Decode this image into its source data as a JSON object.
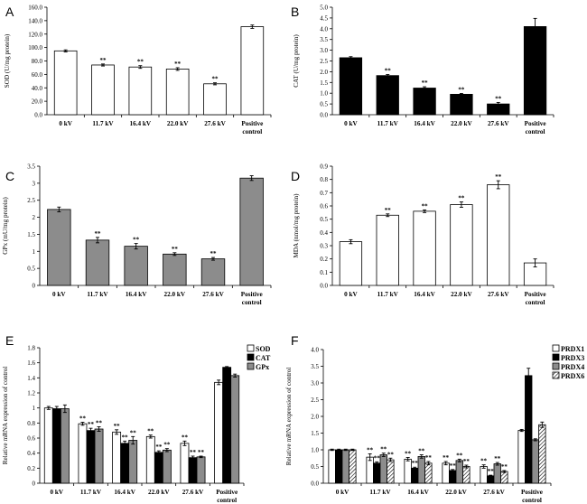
{
  "chart_data": [
    {
      "panel_label": "A",
      "type": "bar",
      "ylabel": "SOD (U/mg protein)",
      "ylim": [
        0,
        160
      ],
      "ytick_step": 20,
      "ytick_labels": [
        "0.0",
        "20.0",
        "40.0",
        "60.0",
        "80.0",
        "100.0",
        "120.0",
        "140.0",
        "160.0"
      ],
      "categories": [
        "0 kV",
        "11.7 kV",
        "16.4 kV",
        "22.0 kV",
        "27.6 kV",
        "Positive control"
      ],
      "series": [
        {
          "name": "SOD",
          "values": [
            95,
            74,
            71,
            68,
            46,
            131
          ],
          "errors": [
            1.5,
            1.5,
            2,
            2,
            1.5,
            2.5
          ],
          "sig": [
            "",
            "**",
            "**",
            "**",
            "**",
            ""
          ]
        }
      ]
    },
    {
      "panel_label": "B",
      "type": "bar",
      "ylabel": "CAT (U/mg protein)",
      "ylim": [
        0,
        5
      ],
      "ytick_step": 0.5,
      "ytick_labels": [
        "0.0",
        "0.5",
        "1.0",
        "1.5",
        "2.0",
        "2.5",
        "3.0",
        "3.5",
        "4.0",
        "4.5",
        "5.0"
      ],
      "categories": [
        "0 kV",
        "11.7 kV",
        "16.4 kV",
        "22.0 kV",
        "27.6 kV",
        "Positive control"
      ],
      "series": [
        {
          "name": "CAT",
          "values": [
            2.65,
            1.82,
            1.24,
            0.95,
            0.5,
            4.1
          ],
          "errors": [
            0.05,
            0.05,
            0.06,
            0.04,
            0.07,
            0.38
          ],
          "sig": [
            "",
            "**",
            "**",
            "**",
            "**",
            ""
          ]
        }
      ]
    },
    {
      "panel_label": "C",
      "type": "bar",
      "ylabel": "GPx (mU/mg protein)",
      "ylim": [
        0,
        3.5
      ],
      "ytick_step": 0.5,
      "ytick_labels": [
        "0",
        "0.5",
        "1",
        "1.5",
        "2",
        "2.5",
        "3",
        "3.5"
      ],
      "categories": [
        "0 kV",
        "11.7 kV",
        "16.4 kV",
        "22.0 kV",
        "27.6 kV",
        "Positive control"
      ],
      "series": [
        {
          "name": "GPx",
          "values": [
            2.23,
            1.33,
            1.15,
            0.92,
            0.78,
            3.15
          ],
          "errors": [
            0.07,
            0.08,
            0.08,
            0.04,
            0.04,
            0.07
          ],
          "sig": [
            "",
            "**",
            "**",
            "**",
            "**",
            ""
          ]
        }
      ]
    },
    {
      "panel_label": "D",
      "type": "bar",
      "ylabel": "MDA (nmol/mg protein)",
      "ylim": [
        0,
        0.9
      ],
      "ytick_step": 0.1,
      "ytick_labels": [
        "0.0",
        "0.1",
        "0.2",
        "0.3",
        "0.4",
        "0.5",
        "0.6",
        "0.7",
        "0.8",
        "0.9"
      ],
      "categories": [
        "0 kV",
        "11.7 kV",
        "16.4 kV",
        "22.0 kV",
        "27.6 kV",
        "Positive control"
      ],
      "series": [
        {
          "name": "MDA",
          "values": [
            0.33,
            0.53,
            0.56,
            0.61,
            0.76,
            0.17
          ],
          "errors": [
            0.015,
            0.01,
            0.01,
            0.02,
            0.03,
            0.03
          ],
          "sig": [
            "",
            "**",
            "**",
            "**",
            "**",
            ""
          ]
        }
      ]
    },
    {
      "panel_label": "E",
      "type": "bar",
      "ylabel": "Relative mRNA expression of control",
      "ylim": [
        0,
        1.8
      ],
      "ytick_step": 0.2,
      "ytick_labels": [
        "0",
        "0.2",
        "0.4",
        "0.6",
        "0.8",
        "1",
        "1.2",
        "1.4",
        "1.6",
        "1.8"
      ],
      "categories": [
        "0 kV",
        "11.7 kV",
        "16.4 kV",
        "22.0 kV",
        "27.6 kV",
        "Positive control"
      ],
      "series": [
        {
          "name": "SOD",
          "values": [
            1.0,
            0.79,
            0.68,
            0.62,
            0.53,
            1.34
          ],
          "errors": [
            0.02,
            0.02,
            0.03,
            0.02,
            0.03,
            0.03
          ],
          "sig": [
            "",
            "**",
            "**",
            "**",
            "**",
            ""
          ]
        },
        {
          "name": "CAT",
          "values": [
            0.99,
            0.7,
            0.53,
            0.41,
            0.34,
            1.54
          ],
          "errors": [
            0.03,
            0.03,
            0.03,
            0.02,
            0.02,
            0.01
          ],
          "sig": [
            "",
            "**",
            "**",
            "**",
            "**",
            ""
          ]
        },
        {
          "name": "GPx",
          "values": [
            0.99,
            0.72,
            0.57,
            0.44,
            0.35,
            1.43
          ],
          "errors": [
            0.05,
            0.03,
            0.05,
            0.02,
            0.01,
            0.02
          ],
          "sig": [
            "",
            "**",
            "**",
            "**",
            "**",
            ""
          ]
        }
      ]
    },
    {
      "panel_label": "F",
      "type": "bar",
      "ylabel": "Relative mRNA expression of control",
      "ylim": [
        0,
        4
      ],
      "ytick_step": 0.5,
      "ytick_labels": [
        "0.0",
        "0.5",
        "1.0",
        "1.5",
        "2.0",
        "2.5",
        "3.0",
        "3.5",
        "4.0"
      ],
      "categories": [
        "0 kV",
        "11.7 kV",
        "16.4 kV",
        "22.0 kV",
        "27.6 kV",
        "Positive control"
      ],
      "series": [
        {
          "name": "PRDX1",
          "values": [
            1.0,
            0.78,
            0.72,
            0.6,
            0.5,
            1.58
          ],
          "errors": [
            0.02,
            0.1,
            0.05,
            0.05,
            0.05,
            0.03
          ],
          "sig": [
            "",
            "**",
            "**",
            "**",
            "**",
            ""
          ]
        },
        {
          "name": "PRDX3",
          "values": [
            1.0,
            0.6,
            0.45,
            0.38,
            0.22,
            3.22
          ],
          "errors": [
            0.02,
            0.04,
            0.03,
            0.03,
            0.02,
            0.22
          ],
          "sig": [
            "",
            "**",
            "**",
            "**",
            "**",
            ""
          ]
        },
        {
          "name": "PRDX4",
          "values": [
            1.0,
            0.85,
            0.8,
            0.68,
            0.58,
            1.3
          ],
          "errors": [
            0.02,
            0.05,
            0.05,
            0.04,
            0.04,
            0.03
          ],
          "sig": [
            "",
            "**",
            "**",
            "**",
            "**",
            ""
          ]
        },
        {
          "name": "PRDX6",
          "values": [
            1.0,
            0.7,
            0.6,
            0.5,
            0.35,
            1.75
          ],
          "errors": [
            0.02,
            0.05,
            0.05,
            0.04,
            0.03,
            0.08
          ],
          "sig": [
            "",
            "**",
            "**",
            "**",
            "**",
            ""
          ]
        }
      ]
    }
  ],
  "colors": {
    "white": "#ffffff",
    "black": "#000000",
    "gray": "#8c8c8c",
    "light": "#cfcfcf"
  }
}
